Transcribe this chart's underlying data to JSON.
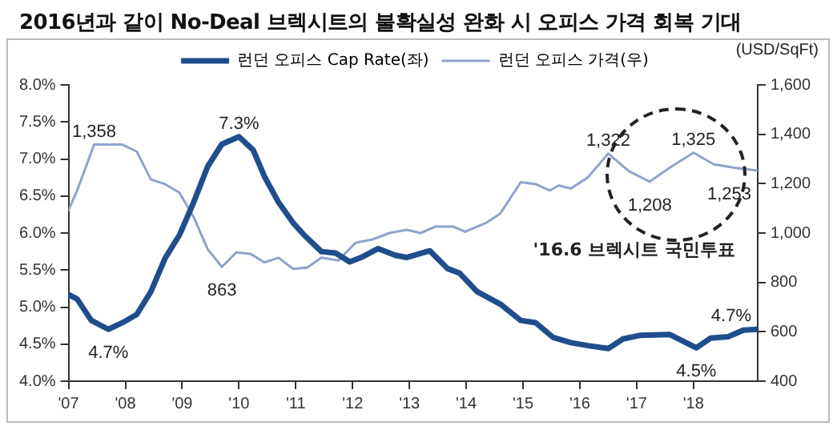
{
  "chart_data": {
    "type": "line",
    "title": "2016년과 같이 No-Deal 브렉시트의 불확실성 완화 시 오피스 가격 회복 기대",
    "y2label": "(USD/SqFt)",
    "annotations": [
      "'16.6 브렉시트 국민투표"
    ],
    "xlim": [
      2007,
      2019.13
    ],
    "xticks": [
      {
        "value": 2007,
        "label": "'07"
      },
      {
        "value": 2008,
        "label": "'08"
      },
      {
        "value": 2009,
        "label": "'09"
      },
      {
        "value": 2010,
        "label": "'10"
      },
      {
        "value": 2011,
        "label": "'11"
      },
      {
        "value": 2012,
        "label": "'12"
      },
      {
        "value": 2013,
        "label": "'13"
      },
      {
        "value": 2014,
        "label": "'14"
      },
      {
        "value": 2015,
        "label": "'15"
      },
      {
        "value": 2016,
        "label": "'16"
      },
      {
        "value": 2017,
        "label": "'17"
      },
      {
        "value": 2018,
        "label": "'18"
      }
    ],
    "ylim": [
      4,
      8
    ],
    "yticks": [
      {
        "value": 4,
        "label": "4.0%"
      },
      {
        "value": 4.5,
        "label": "4.5%"
      },
      {
        "value": 5,
        "label": "5.0%"
      },
      {
        "value": 5.5,
        "label": "5.5%"
      },
      {
        "value": 6,
        "label": "6.0%"
      },
      {
        "value": 6.5,
        "label": "6.5%"
      },
      {
        "value": 7,
        "label": "7.0%"
      },
      {
        "value": 7.5,
        "label": "7.5%"
      },
      {
        "value": 8,
        "label": "8.0%"
      }
    ],
    "y2lim": [
      400,
      1600
    ],
    "y2ticks": [
      400,
      600,
      800,
      {
        "value": 1000,
        "label": "1,000"
      },
      {
        "value": 1200,
        "label": "1,200"
      },
      {
        "value": 1400,
        "label": "1,400"
      },
      {
        "value": 1600,
        "label": "1,600"
      }
    ],
    "grid": false,
    "legend": "top",
    "marker": "none",
    "line_style": "solid",
    "series": [
      {
        "name": "런던 오피스 Cap Rate(좌)",
        "color": "#1f4e8c",
        "x": [
          2007,
          2007.15,
          2007.4,
          2007.7,
          2007.95,
          2008.2,
          2008.45,
          2008.7,
          2008.95,
          2009.2,
          2009.45,
          2009.7,
          2010.0,
          2010.25,
          2010.45,
          2010.7,
          2010.95,
          2011.15,
          2011.45,
          2011.7,
          2011.95,
          2012.15,
          2012.45,
          2012.75,
          2012.95,
          2013.36,
          2013.67,
          2013.88,
          2014.19,
          2014.6,
          2014.96,
          2015.22,
          2015.53,
          2015.84,
          2016.14,
          2016.5,
          2016.76,
          2017.07,
          2017.58,
          2018.05,
          2018.3,
          2018.61,
          2018.88,
          2019.13
        ],
        "values": [
          5.17,
          5.11,
          4.82,
          4.7,
          4.79,
          4.9,
          5.21,
          5.66,
          5.97,
          6.41,
          6.9,
          7.2,
          7.3,
          7.12,
          6.76,
          6.41,
          6.14,
          5.97,
          5.75,
          5.73,
          5.61,
          5.67,
          5.79,
          5.7,
          5.67,
          5.76,
          5.52,
          5.46,
          5.21,
          5.04,
          4.82,
          4.79,
          4.59,
          4.52,
          4.48,
          4.44,
          4.57,
          4.62,
          4.63,
          4.45,
          4.58,
          4.6,
          4.69,
          4.7
        ],
        "value_labels": [
          null,
          null,
          null,
          "4.7%",
          null,
          null,
          null,
          null,
          null,
          null,
          null,
          null,
          "7.3%",
          null,
          null,
          null,
          null,
          null,
          null,
          null,
          null,
          null,
          null,
          null,
          null,
          null,
          null,
          null,
          null,
          null,
          null,
          null,
          null,
          null,
          null,
          null,
          null,
          null,
          null,
          "4.5%",
          null,
          null,
          null,
          "4.7%"
        ]
      },
      {
        "name": "런던 오피스 가격(우)",
        "color": "#8fa3cc",
        "axis": "y2",
        "x": [
          2007,
          2007.15,
          2007.45,
          2007.95,
          2008.2,
          2008.45,
          2008.7,
          2008.95,
          2009.2,
          2009.45,
          2009.7,
          2009.95,
          2010.2,
          2010.45,
          2010.7,
          2010.95,
          2011.2,
          2011.45,
          2011.75,
          2012.05,
          2012.35,
          2012.65,
          2012.95,
          2013.2,
          2013.46,
          2013.77,
          2013.98,
          2014.34,
          2014.6,
          2014.96,
          2015.22,
          2015.47,
          2015.63,
          2015.84,
          2016.14,
          2016.5,
          2016.86,
          2017.23,
          2017.58,
          2018.0,
          2018.36,
          2018.72,
          2019.13
        ],
        "values": [
          1093,
          1172,
          1358,
          1358,
          1330,
          1217,
          1198,
          1164,
          1066,
          934,
          863,
          921,
          916,
          881,
          900,
          855,
          860,
          900,
          889,
          960,
          974,
          1000,
          1013,
          1000,
          1026,
          1026,
          1005,
          1040,
          1079,
          1206,
          1198,
          1172,
          1193,
          1180,
          1225,
          1322,
          1251,
          1208,
          1264,
          1325,
          1278,
          1264,
          1253
        ],
        "value_labels": [
          null,
          null,
          "1,358",
          null,
          null,
          null,
          null,
          null,
          null,
          null,
          "863",
          null,
          null,
          null,
          null,
          null,
          null,
          null,
          null,
          null,
          null,
          null,
          null,
          null,
          null,
          null,
          null,
          null,
          null,
          null,
          null,
          null,
          null,
          null,
          null,
          "1,322",
          null,
          "1,208",
          null,
          "1,325",
          null,
          null,
          "1,253"
        ]
      }
    ]
  }
}
